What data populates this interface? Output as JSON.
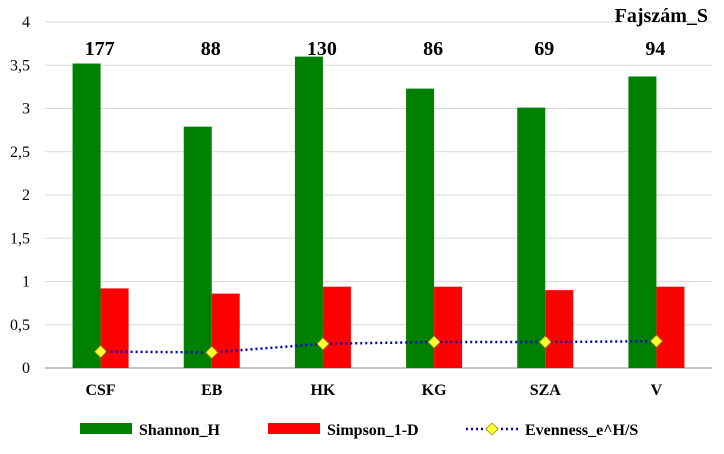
{
  "chart_data": {
    "type": "bar",
    "categories": [
      "CSF",
      "EB",
      "HK",
      "KG",
      "SZA",
      "V"
    ],
    "series": [
      {
        "name": "Shannon_H",
        "kind": "bar",
        "color": "#008000",
        "values": [
          3.52,
          2.79,
          3.6,
          3.23,
          3.01,
          3.37
        ]
      },
      {
        "name": "Simpson_1-D",
        "kind": "bar",
        "color": "#ff0000",
        "values": [
          0.92,
          0.86,
          0.94,
          0.94,
          0.9,
          0.94
        ]
      },
      {
        "name": "Evenness_e^H/S",
        "kind": "line",
        "line_color": "#0000cc",
        "line_style": "dotted",
        "marker": "diamond",
        "marker_color": "#ffff33",
        "values": [
          0.19,
          0.18,
          0.28,
          0.3,
          0.3,
          0.31
        ]
      }
    ],
    "annotation_title": "Fajszám_S",
    "annotations": [
      "177",
      "88",
      "130",
      "86",
      "69",
      "94"
    ],
    "ylim": [
      0,
      4
    ],
    "yticks": [
      "0",
      "0,5",
      "1",
      "1,5",
      "2",
      "2,5",
      "3",
      "3,5",
      "4"
    ],
    "ytick_values": [
      0,
      0.5,
      1,
      1.5,
      2,
      2.5,
      3,
      3.5,
      4
    ],
    "grid": true,
    "legend_position": "bottom"
  }
}
